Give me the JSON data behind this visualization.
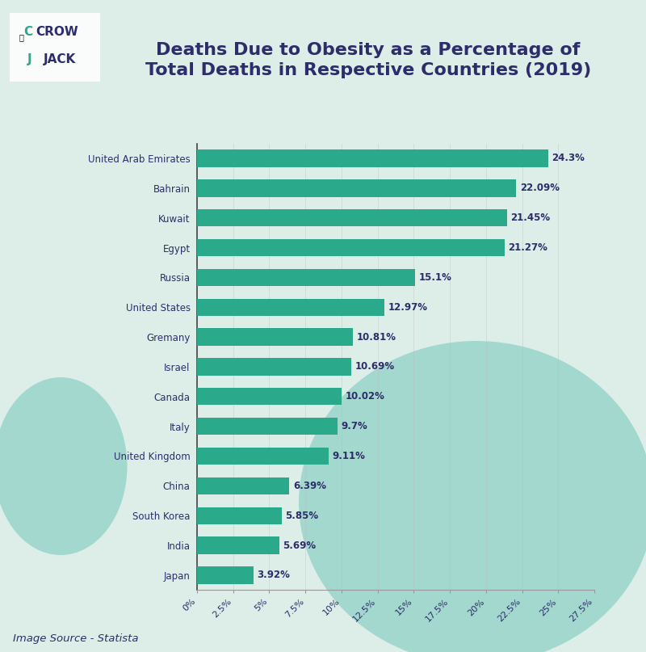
{
  "title": "Deaths Due to Obesity as a Percentage of\nTotal Deaths in Respective Countries (2019)",
  "title_color": "#2d2d6b",
  "title_fontsize": 16,
  "background_color": "#ddeee9",
  "bar_color": "#2aaa8a",
  "label_color": "#2d2d6b",
  "value_color": "#2d2d6b",
  "countries": [
    "United Arab Emirates",
    "Bahrain",
    "Kuwait",
    "Egypt",
    "Russia",
    "United States",
    "Gremany",
    "Israel",
    "Canada",
    "Italy",
    "United Kingdom",
    "China",
    "South Korea",
    "India",
    "Japan"
  ],
  "values": [
    24.3,
    22.09,
    21.45,
    21.27,
    15.1,
    12.97,
    10.81,
    10.69,
    10.02,
    9.7,
    9.11,
    6.39,
    5.85,
    5.69,
    3.92
  ],
  "value_labels": [
    "24.3%",
    "22.09%",
    "21.45%",
    "21.27%",
    "15.1%",
    "12.97%",
    "10.81%",
    "10.69%",
    "10.02%",
    "9.7%",
    "9.11%",
    "6.39%",
    "5.85%",
    "5.69%",
    "3.92%"
  ],
  "xlim": [
    0,
    27.5
  ],
  "xticks": [
    0,
    2.5,
    5,
    7.5,
    10,
    12.5,
    15,
    17.5,
    20,
    22.5,
    25,
    27.5
  ],
  "xtick_labels": [
    "0%",
    "2.5%",
    "5%",
    "7.5%",
    "10%",
    "12.5%",
    "15%",
    "17.5%",
    "20%",
    "22.5%",
    "25%",
    "27.5%"
  ],
  "source_text": "Image Source - Statista",
  "source_color": "#2d2d6b",
  "blob_color": "#85cdc0",
  "logo_crow_color": "#2d2d6b",
  "logo_jack_color": "#2d2d6b",
  "logo_accent_color": "#2aaa8a"
}
